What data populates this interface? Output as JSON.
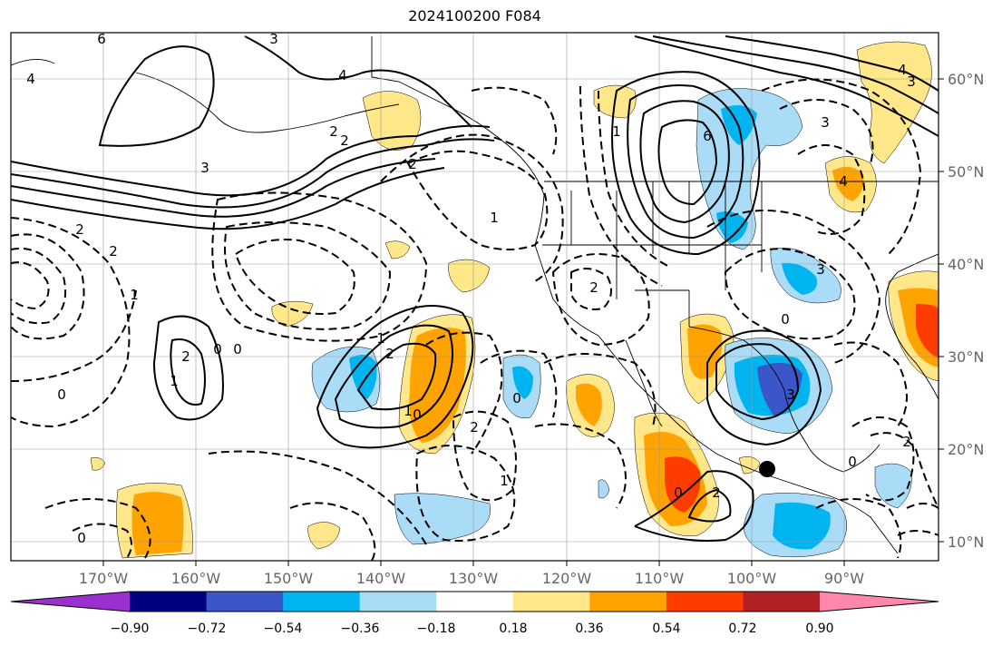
{
  "title": "2024100200 F084",
  "map": {
    "lon_labels": [
      "170°W",
      "160°W",
      "150°W",
      "140°W",
      "130°W",
      "120°W",
      "110°W",
      "100°W",
      "90°W"
    ],
    "lat_labels": [
      "60°N",
      "50°N",
      "40°N",
      "30°N",
      "20°N",
      "10°N"
    ],
    "contour_labels": [
      "6",
      "4",
      "4",
      "3",
      "2",
      "2",
      "2",
      "3",
      "1",
      "1",
      "2",
      "0",
      "2",
      "0",
      "2",
      "1",
      "0",
      "1",
      "0",
      "1",
      "2",
      "0",
      "2",
      "1",
      "0",
      "6",
      "3",
      "4",
      "4",
      "3",
      "3",
      "2",
      "0",
      "3",
      "2",
      "1",
      "0",
      "2",
      "0"
    ]
  },
  "colorbar": {
    "ticks": [
      "−0.90",
      "−0.72",
      "−0.54",
      "−0.36",
      "−0.18",
      "0.18",
      "0.36",
      "0.54",
      "0.72",
      "0.90"
    ],
    "colors": [
      "#9b30d0",
      "#000080",
      "#3a56c8",
      "#00b4f0",
      "#aadcf8",
      "#ffffff",
      "#ffe78a",
      "#ffa300",
      "#ff3c00",
      "#b22222",
      "#ff88aa"
    ]
  },
  "marker": {
    "label": "storm-center"
  }
}
